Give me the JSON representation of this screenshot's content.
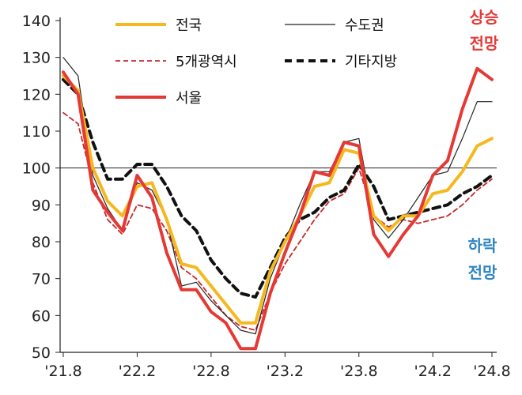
{
  "chart_data": {
    "type": "line",
    "x_labels": [
      "'21.8",
      "'22.2",
      "'22.8",
      "'23.2",
      "'23.8",
      "'24.2",
      "'24.8"
    ],
    "ylim": [
      50,
      140
    ],
    "yticks": [
      50,
      60,
      70,
      80,
      90,
      100,
      110,
      120,
      130,
      140
    ],
    "reference_line": 100,
    "series": [
      {
        "name": "전국",
        "color": "#F5B820",
        "style": "solid-thick",
        "values": [
          125,
          121,
          100,
          91,
          87,
          95,
          96,
          86,
          74,
          73,
          68,
          63,
          58,
          58,
          72,
          80,
          87,
          95,
          96,
          105,
          104,
          87,
          83,
          87,
          87,
          93,
          94,
          99,
          106,
          108
        ]
      },
      {
        "name": "수도권",
        "color": "#222222",
        "style": "solid-thin",
        "values": [
          130,
          125,
          98,
          89,
          83,
          96,
          94,
          86,
          68,
          69,
          64,
          60,
          56,
          55,
          70,
          80,
          90,
          99,
          99,
          107,
          108,
          86,
          81,
          86,
          92,
          98,
          99,
          108,
          118,
          118
        ]
      },
      {
        "name": "5개광역시",
        "color": "#C62828",
        "style": "dashed-thin",
        "values": [
          115,
          112,
          96,
          86,
          82,
          90,
          89,
          83,
          73,
          70,
          65,
          60,
          57,
          56,
          66,
          74,
          80,
          86,
          91,
          93,
          100,
          87,
          84,
          86,
          85,
          86,
          87,
          90,
          94,
          97
        ]
      },
      {
        "name": "기타지방",
        "color": "#111111",
        "style": "dashed-thick",
        "values": [
          124,
          120,
          107,
          97,
          97,
          101,
          101,
          95,
          87,
          83,
          75,
          70,
          66,
          65,
          73,
          81,
          86,
          88,
          92,
          94,
          101,
          95,
          86,
          87,
          88,
          89,
          90,
          93,
          95,
          98
        ]
      },
      {
        "name": "서울",
        "color": "#E53935",
        "style": "solid-thick",
        "values": [
          126,
          120,
          94,
          88,
          83,
          98,
          92,
          77,
          67,
          67,
          61,
          58,
          51,
          51,
          66,
          77,
          87,
          99,
          98,
          107,
          106,
          82,
          76,
          82,
          87,
          98,
          102,
          116,
          127,
          124
        ]
      }
    ],
    "annotations": {
      "up": [
        "상승",
        "전망"
      ],
      "up_color": "#E53935",
      "down": [
        "하락",
        "전망"
      ],
      "down_color": "#2E86C1"
    }
  }
}
